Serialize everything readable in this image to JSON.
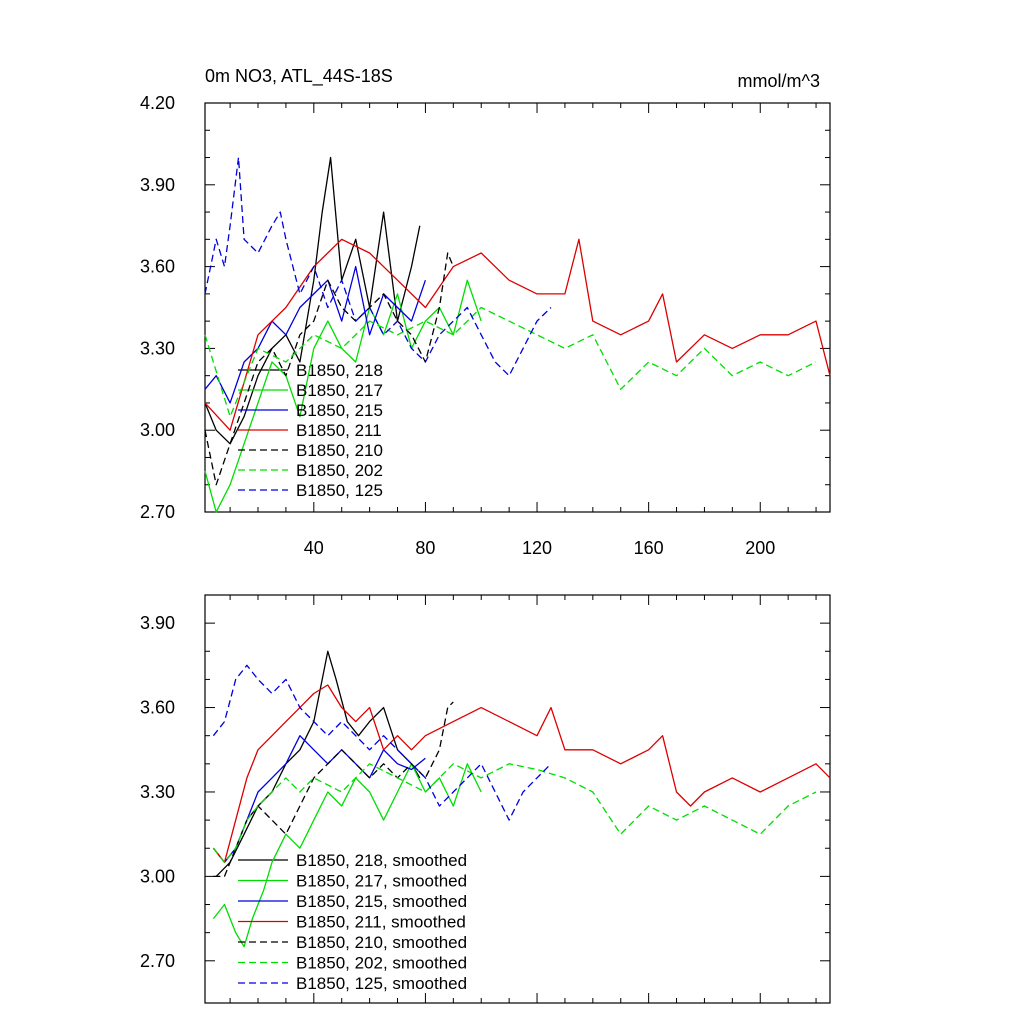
{
  "chart_data": [
    {
      "type": "line",
      "title": "0m NO3, ATL_44S-18S",
      "units": "mmol/m^3",
      "xlabel": "",
      "ylabel": "",
      "xlim": [
        1,
        225
      ],
      "ylim": [
        2.7,
        4.2
      ],
      "xticks": [
        40,
        80,
        120,
        160,
        200
      ],
      "yticks": [
        "2.70",
        "3.00",
        "3.30",
        "3.60",
        "3.90",
        "4.20"
      ],
      "legend_position": "lower-left",
      "series": [
        {
          "name": "B1850, 218",
          "color": "#000000",
          "dash": "solid",
          "x": [
            1,
            5,
            10,
            15,
            20,
            25,
            30,
            35,
            40,
            43,
            46,
            50,
            55,
            60,
            65,
            70,
            75,
            78
          ],
          "y": [
            3.1,
            3.0,
            2.95,
            3.05,
            3.2,
            3.3,
            3.35,
            3.25,
            3.55,
            3.8,
            4.0,
            3.55,
            3.7,
            3.45,
            3.8,
            3.4,
            3.6,
            3.75
          ]
        },
        {
          "name": "B1850, 217",
          "color": "#00dd00",
          "dash": "solid",
          "x": [
            1,
            5,
            10,
            15,
            20,
            25,
            30,
            35,
            40,
            45,
            50,
            55,
            60,
            65,
            70,
            75,
            80,
            85,
            90,
            95,
            100
          ],
          "y": [
            2.85,
            2.7,
            2.8,
            2.95,
            3.1,
            3.25,
            3.2,
            3.05,
            3.3,
            3.4,
            3.3,
            3.25,
            3.45,
            3.35,
            3.5,
            3.3,
            3.4,
            3.45,
            3.35,
            3.55,
            3.4
          ]
        },
        {
          "name": "B1850, 215",
          "color": "#0000dd",
          "dash": "solid",
          "x": [
            1,
            5,
            10,
            15,
            20,
            25,
            30,
            35,
            40,
            45,
            50,
            55,
            60,
            65,
            70,
            75,
            80
          ],
          "y": [
            3.15,
            3.2,
            3.1,
            3.25,
            3.3,
            3.4,
            3.35,
            3.45,
            3.5,
            3.55,
            3.4,
            3.6,
            3.35,
            3.5,
            3.45,
            3.4,
            3.55
          ]
        },
        {
          "name": "B1850, 211",
          "color": "#dd0000",
          "dash": "solid",
          "x": [
            1,
            10,
            20,
            30,
            40,
            50,
            60,
            70,
            80,
            90,
            100,
            110,
            120,
            130,
            135,
            140,
            150,
            160,
            165,
            170,
            180,
            190,
            200,
            210,
            220,
            225
          ],
          "y": [
            3.1,
            3.0,
            3.35,
            3.45,
            3.6,
            3.7,
            3.65,
            3.55,
            3.45,
            3.6,
            3.65,
            3.55,
            3.5,
            3.5,
            3.7,
            3.4,
            3.35,
            3.4,
            3.5,
            3.25,
            3.35,
            3.3,
            3.35,
            3.35,
            3.4,
            3.2
          ]
        },
        {
          "name": "B1850, 210",
          "color": "#000000",
          "dash": "dash",
          "x": [
            1,
            5,
            10,
            15,
            20,
            25,
            30,
            35,
            40,
            45,
            50,
            55,
            60,
            65,
            70,
            75,
            80,
            85,
            88,
            90
          ],
          "y": [
            3.0,
            2.8,
            2.95,
            3.1,
            3.25,
            3.3,
            3.2,
            3.35,
            3.4,
            3.55,
            3.45,
            3.4,
            3.45,
            3.5,
            3.4,
            3.35,
            3.25,
            3.45,
            3.65,
            3.6
          ]
        },
        {
          "name": "B1850, 202",
          "color": "#00dd00",
          "dash": "dash",
          "x": [
            1,
            10,
            20,
            30,
            40,
            50,
            60,
            70,
            80,
            90,
            100,
            110,
            120,
            130,
            140,
            150,
            160,
            170,
            180,
            190,
            200,
            210,
            220
          ],
          "y": [
            3.35,
            3.05,
            3.3,
            3.25,
            3.35,
            3.3,
            3.4,
            3.35,
            3.4,
            3.35,
            3.45,
            3.4,
            3.35,
            3.3,
            3.35,
            3.15,
            3.25,
            3.2,
            3.3,
            3.2,
            3.25,
            3.2,
            3.25
          ]
        },
        {
          "name": "B1850, 125",
          "color": "#0000dd",
          "dash": "dash",
          "x": [
            1,
            5,
            8,
            10,
            13,
            15,
            20,
            25,
            28,
            30,
            35,
            40,
            45,
            50,
            55,
            60,
            65,
            70,
            75,
            80,
            85,
            90,
            95,
            100,
            105,
            110,
            115,
            120,
            125
          ],
          "y": [
            3.5,
            3.7,
            3.6,
            3.75,
            4.0,
            3.7,
            3.65,
            3.75,
            3.8,
            3.7,
            3.5,
            3.6,
            3.45,
            3.55,
            3.4,
            3.45,
            3.35,
            3.4,
            3.3,
            3.25,
            3.35,
            3.4,
            3.45,
            3.35,
            3.25,
            3.2,
            3.3,
            3.4,
            3.45
          ]
        }
      ]
    },
    {
      "type": "line",
      "title": "",
      "xlabel": "",
      "ylabel": "",
      "xlim": [
        1,
        225
      ],
      "ylim": [
        2.55,
        4.0
      ],
      "yticks": [
        "2.70",
        "3.00",
        "3.30",
        "3.60",
        "3.90"
      ],
      "legend_position": "lower-left",
      "series": [
        {
          "name": "B1850, 218, smoothed",
          "color": "#000000",
          "dash": "solid",
          "x": [
            5,
            10,
            15,
            20,
            25,
            30,
            35,
            40,
            45,
            48,
            52,
            56,
            60,
            65,
            70,
            75,
            78
          ],
          "y": [
            3.0,
            3.05,
            3.15,
            3.25,
            3.3,
            3.4,
            3.45,
            3.55,
            3.8,
            3.7,
            3.55,
            3.5,
            3.55,
            3.6,
            3.45,
            3.4,
            3.35
          ]
        },
        {
          "name": "B1850, 217, smoothed",
          "color": "#00dd00",
          "dash": "solid",
          "x": [
            4,
            8,
            12,
            15,
            18,
            22,
            25,
            30,
            35,
            40,
            45,
            50,
            55,
            60,
            65,
            70,
            75,
            80,
            85,
            90,
            95,
            100
          ],
          "y": [
            2.85,
            2.9,
            2.8,
            2.75,
            2.85,
            2.95,
            3.05,
            3.15,
            3.1,
            3.2,
            3.3,
            3.25,
            3.35,
            3.3,
            3.2,
            3.3,
            3.4,
            3.3,
            3.35,
            3.25,
            3.4,
            3.3
          ]
        },
        {
          "name": "B1850, 215, smoothed",
          "color": "#0000dd",
          "dash": "solid",
          "x": [
            4,
            8,
            12,
            16,
            20,
            25,
            30,
            35,
            40,
            45,
            50,
            55,
            60,
            65,
            70,
            75,
            80
          ],
          "y": [
            3.1,
            3.05,
            3.1,
            3.2,
            3.3,
            3.35,
            3.4,
            3.5,
            3.45,
            3.4,
            3.45,
            3.4,
            3.35,
            3.45,
            3.4,
            3.38,
            3.42
          ]
        },
        {
          "name": "B1850, 211, smoothed",
          "color": "#dd0000",
          "dash": "solid",
          "x": [
            4,
            8,
            12,
            16,
            20,
            25,
            30,
            35,
            40,
            45,
            50,
            55,
            60,
            65,
            70,
            75,
            80,
            90,
            100,
            110,
            120,
            125,
            130,
            140,
            150,
            160,
            165,
            170,
            175,
            180,
            190,
            200,
            210,
            220,
            225
          ],
          "y": [
            3.1,
            3.05,
            3.2,
            3.35,
            3.45,
            3.5,
            3.55,
            3.6,
            3.65,
            3.68,
            3.6,
            3.55,
            3.6,
            3.45,
            3.5,
            3.45,
            3.5,
            3.55,
            3.6,
            3.55,
            3.5,
            3.6,
            3.45,
            3.45,
            3.4,
            3.45,
            3.5,
            3.3,
            3.25,
            3.3,
            3.35,
            3.3,
            3.35,
            3.4,
            3.35
          ]
        },
        {
          "name": "B1850, 210, smoothed",
          "color": "#000000",
          "dash": "dash",
          "x": [
            4,
            8,
            12,
            16,
            20,
            25,
            30,
            35,
            40,
            45,
            50,
            55,
            60,
            65,
            70,
            75,
            80,
            85,
            88,
            90
          ],
          "y": [
            3.0,
            3.0,
            3.1,
            3.2,
            3.25,
            3.2,
            3.15,
            3.25,
            3.35,
            3.4,
            3.45,
            3.4,
            3.35,
            3.4,
            3.35,
            3.4,
            3.35,
            3.45,
            3.6,
            3.62
          ]
        },
        {
          "name": "B1850, 202, smoothed",
          "color": "#00dd00",
          "dash": "dash",
          "x": [
            4,
            8,
            12,
            16,
            20,
            25,
            30,
            35,
            40,
            50,
            60,
            70,
            80,
            90,
            100,
            110,
            120,
            130,
            140,
            150,
            160,
            170,
            180,
            190,
            200,
            210,
            220
          ],
          "y": [
            3.1,
            3.05,
            3.1,
            3.2,
            3.25,
            3.3,
            3.35,
            3.3,
            3.35,
            3.3,
            3.4,
            3.35,
            3.3,
            3.4,
            3.35,
            3.4,
            3.38,
            3.35,
            3.3,
            3.15,
            3.25,
            3.2,
            3.25,
            3.2,
            3.15,
            3.25,
            3.3
          ]
        },
        {
          "name": "B1850, 125, smoothed",
          "color": "#0000dd",
          "dash": "dash",
          "x": [
            4,
            8,
            12,
            16,
            20,
            25,
            30,
            35,
            40,
            45,
            50,
            55,
            60,
            65,
            70,
            75,
            80,
            85,
            90,
            95,
            100,
            105,
            110,
            115,
            120,
            125
          ],
          "y": [
            3.5,
            3.55,
            3.7,
            3.75,
            3.7,
            3.65,
            3.7,
            3.6,
            3.55,
            3.5,
            3.55,
            3.5,
            3.45,
            3.5,
            3.45,
            3.4,
            3.35,
            3.25,
            3.3,
            3.35,
            3.4,
            3.3,
            3.2,
            3.3,
            3.35,
            3.4
          ]
        }
      ]
    }
  ]
}
